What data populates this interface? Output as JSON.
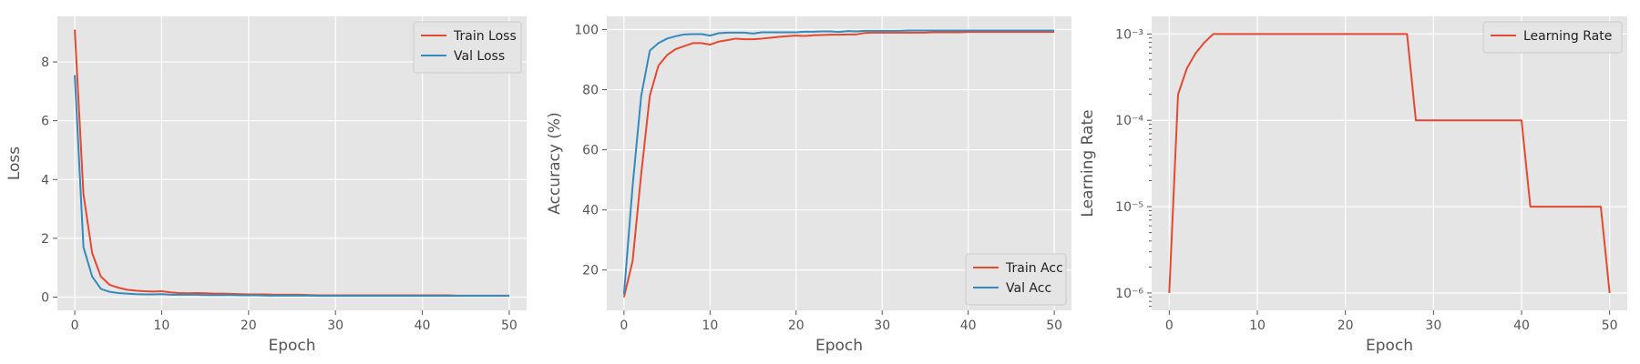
{
  "chart_data": [
    {
      "type": "line",
      "xlabel": "Epoch",
      "ylabel": "Loss",
      "xlim": [
        -2,
        52
      ],
      "ylim": [
        -0.45,
        9.55
      ],
      "xticks": [
        0,
        10,
        20,
        30,
        40,
        50
      ],
      "yticks": [
        0,
        2,
        4,
        6,
        8
      ],
      "ytick_labels": [
        "0",
        "2",
        "4",
        "6",
        "8"
      ],
      "grid": true,
      "legend": "upper right",
      "series": [
        {
          "name": "Train Loss",
          "color": "#e24a33",
          "x": [
            0,
            1,
            2,
            3,
            4,
            5,
            6,
            7,
            8,
            9,
            10,
            11,
            12,
            13,
            14,
            15,
            16,
            17,
            18,
            19,
            20,
            21,
            22,
            23,
            24,
            25,
            26,
            27,
            28,
            29,
            30,
            31,
            32,
            33,
            34,
            35,
            36,
            37,
            38,
            39,
            40,
            41,
            42,
            43,
            44,
            45,
            46,
            47,
            48,
            49,
            50
          ],
          "y": [
            9.1,
            3.5,
            1.5,
            0.7,
            0.42,
            0.32,
            0.25,
            0.22,
            0.2,
            0.19,
            0.2,
            0.16,
            0.14,
            0.13,
            0.14,
            0.13,
            0.12,
            0.12,
            0.11,
            0.1,
            0.09,
            0.09,
            0.09,
            0.08,
            0.08,
            0.08,
            0.08,
            0.07,
            0.06,
            0.06,
            0.06,
            0.06,
            0.06,
            0.06,
            0.06,
            0.06,
            0.06,
            0.06,
            0.06,
            0.06,
            0.06,
            0.06,
            0.06,
            0.06,
            0.05,
            0.05,
            0.05,
            0.05,
            0.05,
            0.05,
            0.05
          ]
        },
        {
          "name": "Val Loss",
          "color": "#348abd",
          "x": [
            0,
            1,
            2,
            3,
            4,
            5,
            6,
            7,
            8,
            9,
            10,
            11,
            12,
            13,
            14,
            15,
            16,
            17,
            18,
            19,
            20,
            21,
            22,
            23,
            24,
            25,
            26,
            27,
            28,
            29,
            30,
            31,
            32,
            33,
            34,
            35,
            36,
            37,
            38,
            39,
            40,
            41,
            42,
            43,
            44,
            45,
            46,
            47,
            48,
            49,
            50
          ],
          "y": [
            7.55,
            1.7,
            0.7,
            0.28,
            0.18,
            0.14,
            0.12,
            0.1,
            0.09,
            0.09,
            0.1,
            0.08,
            0.08,
            0.08,
            0.08,
            0.07,
            0.07,
            0.07,
            0.07,
            0.06,
            0.06,
            0.06,
            0.05,
            0.05,
            0.05,
            0.05,
            0.05,
            0.05,
            0.04,
            0.04,
            0.04,
            0.04,
            0.04,
            0.04,
            0.04,
            0.04,
            0.04,
            0.04,
            0.04,
            0.04,
            0.04,
            0.04,
            0.04,
            0.04,
            0.04,
            0.04,
            0.04,
            0.04,
            0.04,
            0.04,
            0.04
          ]
        }
      ]
    },
    {
      "type": "line",
      "xlabel": "Epoch",
      "ylabel": "Accuracy (%)",
      "xlim": [
        -2,
        52
      ],
      "ylim": [
        6.6,
        104.4
      ],
      "xticks": [
        0,
        10,
        20,
        30,
        40,
        50
      ],
      "yticks": [
        20,
        40,
        60,
        80,
        100
      ],
      "ytick_labels": [
        "20",
        "40",
        "60",
        "80",
        "100"
      ],
      "grid": true,
      "legend": "lower right",
      "series": [
        {
          "name": "Train Acc",
          "color": "#e24a33",
          "x": [
            0,
            1,
            2,
            3,
            4,
            5,
            6,
            7,
            8,
            9,
            10,
            11,
            12,
            13,
            14,
            15,
            16,
            17,
            18,
            19,
            20,
            21,
            22,
            23,
            24,
            25,
            26,
            27,
            28,
            29,
            30,
            31,
            32,
            33,
            34,
            35,
            36,
            37,
            38,
            39,
            40,
            41,
            42,
            43,
            44,
            45,
            46,
            47,
            48,
            49,
            50
          ],
          "y": [
            11,
            23,
            52,
            78,
            88,
            91.5,
            93.5,
            94.5,
            95.5,
            95.5,
            95,
            96,
            96.5,
            97,
            96.8,
            96.8,
            97,
            97.3,
            97.6,
            97.8,
            98,
            97.9,
            98.1,
            98.2,
            98.3,
            98.3,
            98.4,
            98.4,
            98.9,
            99,
            99,
            99,
            99,
            99,
            99,
            99,
            99.1,
            99.1,
            99.1,
            99.1,
            99.2,
            99.2,
            99.2,
            99.2,
            99.2,
            99.2,
            99.2,
            99.2,
            99.2,
            99.2,
            99.2
          ]
        },
        {
          "name": "Val Acc",
          "color": "#348abd",
          "x": [
            0,
            1,
            2,
            3,
            4,
            5,
            6,
            7,
            8,
            9,
            10,
            11,
            12,
            13,
            14,
            15,
            16,
            17,
            18,
            19,
            20,
            21,
            22,
            23,
            24,
            25,
            26,
            27,
            28,
            29,
            30,
            31,
            32,
            33,
            34,
            35,
            36,
            37,
            38,
            39,
            40,
            41,
            42,
            43,
            44,
            45,
            46,
            47,
            48,
            49,
            50
          ],
          "y": [
            12,
            48,
            78,
            93,
            95.5,
            97,
            97.8,
            98.4,
            98.5,
            98.5,
            98,
            98.8,
            99,
            99,
            99,
            98.7,
            99.1,
            99.1,
            99.1,
            99.1,
            99.1,
            99.3,
            99.3,
            99.4,
            99.4,
            99.2,
            99.5,
            99.4,
            99.6,
            99.6,
            99.6,
            99.6,
            99.6,
            99.7,
            99.7,
            99.7,
            99.7,
            99.7,
            99.7,
            99.7,
            99.7,
            99.7,
            99.7,
            99.7,
            99.7,
            99.7,
            99.7,
            99.7,
            99.7,
            99.7,
            99.7
          ]
        }
      ]
    },
    {
      "type": "line",
      "xlabel": "Epoch",
      "ylabel": "Learning Rate",
      "xlim": [
        -2,
        52
      ],
      "ylim": [
        6.3e-07,
        0.0016
      ],
      "yscale": "log",
      "xticks": [
        0,
        10,
        20,
        30,
        40,
        50
      ],
      "yticks": [
        1e-06,
        1e-05,
        0.0001,
        0.001
      ],
      "ytick_labels": [
        "10⁻⁶",
        "10⁻⁵",
        "10⁻⁴",
        "10⁻³"
      ],
      "grid": true,
      "legend": "upper right",
      "series": [
        {
          "name": "Learning Rate",
          "color": "#e24a33",
          "x": [
            0,
            1,
            2,
            3,
            4,
            5,
            6,
            7,
            8,
            9,
            10,
            11,
            12,
            13,
            14,
            15,
            16,
            17,
            18,
            19,
            20,
            21,
            22,
            23,
            24,
            25,
            26,
            27,
            28,
            29,
            30,
            31,
            32,
            33,
            34,
            35,
            36,
            37,
            38,
            39,
            40,
            41,
            42,
            43,
            44,
            45,
            46,
            47,
            48,
            49,
            50
          ],
          "y": [
            1e-06,
            0.0002,
            0.0004,
            0.0006,
            0.0008,
            0.001,
            0.001,
            0.001,
            0.001,
            0.001,
            0.001,
            0.001,
            0.001,
            0.001,
            0.001,
            0.001,
            0.001,
            0.001,
            0.001,
            0.001,
            0.001,
            0.001,
            0.001,
            0.001,
            0.001,
            0.001,
            0.001,
            0.001,
            0.0001,
            0.0001,
            0.0001,
            0.0001,
            0.0001,
            0.0001,
            0.0001,
            0.0001,
            0.0001,
            0.0001,
            0.0001,
            0.0001,
            0.0001,
            1e-05,
            1e-05,
            1e-05,
            1e-05,
            1e-05,
            1e-05,
            1e-05,
            1e-05,
            1e-05,
            1e-06
          ]
        }
      ]
    }
  ]
}
